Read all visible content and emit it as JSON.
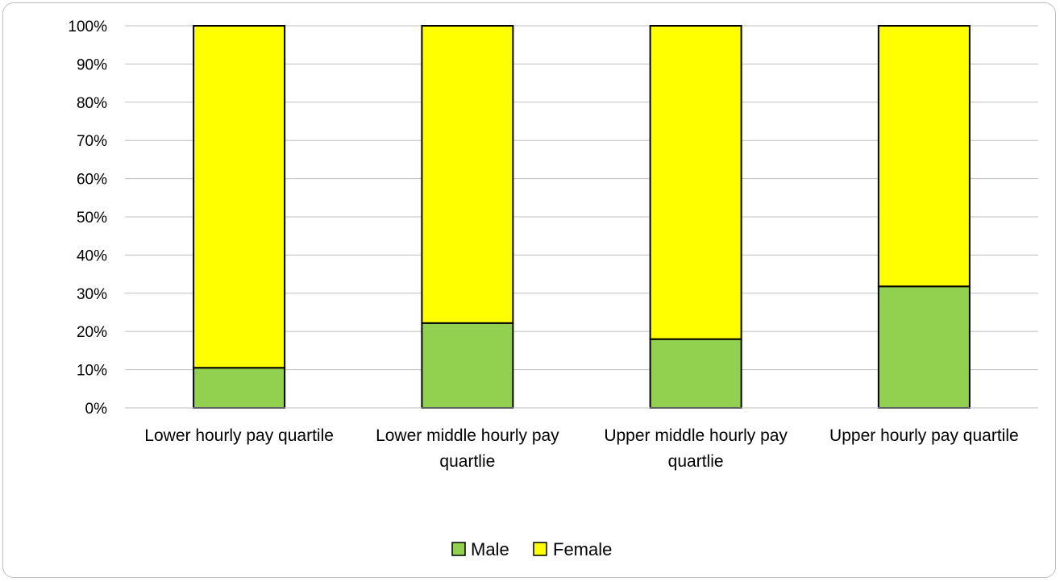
{
  "chart_data": {
    "type": "bar",
    "stacked": true,
    "percent": true,
    "categories": [
      [
        "Lower hourly pay quartile"
      ],
      [
        "Lower middle hourly pay",
        "quartlie"
      ],
      [
        "Upper middle hourly pay",
        "quartlie"
      ],
      [
        "Upper hourly pay quartile"
      ]
    ],
    "series": [
      {
        "name": "Male",
        "values": [
          10.5,
          22.2,
          18.0,
          31.8
        ],
        "color": "#92d050"
      },
      {
        "name": "Female",
        "values": [
          89.5,
          77.8,
          82.0,
          68.2
        ],
        "color": "#ffff00"
      }
    ],
    "yticks": [
      "0%",
      "10%",
      "20%",
      "30%",
      "40%",
      "50%",
      "60%",
      "70%",
      "80%",
      "90%",
      "100%"
    ],
    "ylim": [
      0,
      100
    ],
    "grid": true,
    "legend": "bottom-center"
  }
}
